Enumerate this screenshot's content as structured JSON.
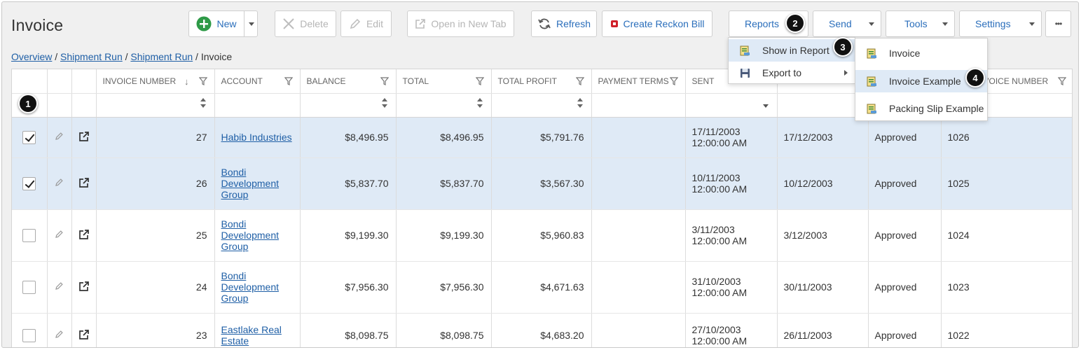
{
  "page": {
    "title": "Invoice"
  },
  "toolbar": {
    "new": "New",
    "delete": "Delete",
    "edit": "Edit",
    "open_new_tab": "Open in New Tab",
    "refresh": "Refresh",
    "create_reckon_bill": "Create Reckon Bill",
    "reports": "Reports",
    "send": "Send",
    "tools": "Tools",
    "settings": "Settings",
    "more": "•••"
  },
  "breadcrumb": {
    "overview": "Overview",
    "shipment_run_1": "Shipment Run",
    "shipment_run_2": "Shipment Run",
    "sep": " / ",
    "current": "Invoice"
  },
  "columns": {
    "invoice_number": "Invoice Number",
    "account": "Account",
    "balance": "Balance",
    "total": "Total",
    "total_profit": "Total Profit",
    "payment_terms": "Payment Terms",
    "sent": "Sent",
    "voice_number": "voice Number"
  },
  "rows": [
    {
      "selected": true,
      "number": "27",
      "account": [
        "Habib Industries"
      ],
      "balance": "$8,496.95",
      "total": "$8,496.95",
      "profit": "$5,791.76",
      "sent_date": "17/11/2003",
      "sent_time": "12:00:00 AM",
      "due": "17/12/2003",
      "status": "Approved",
      "ref": "1026"
    },
    {
      "selected": true,
      "number": "26",
      "account": [
        "Bondi",
        "Development",
        "Group"
      ],
      "balance": "$5,837.70",
      "total": "$5,837.70",
      "profit": "$3,567.30",
      "sent_date": "10/11/2003",
      "sent_time": "12:00:00 AM",
      "due": "10/12/2003",
      "status": "Approved",
      "ref": "1025"
    },
    {
      "selected": false,
      "number": "25",
      "account": [
        "Bondi",
        "Development",
        "Group"
      ],
      "balance": "$9,199.30",
      "total": "$9,199.30",
      "profit": "$5,960.83",
      "sent_date": "3/11/2003",
      "sent_time": "12:00:00 AM",
      "due": "3/12/2003",
      "status": "Approved",
      "ref": "1024"
    },
    {
      "selected": false,
      "number": "24",
      "account": [
        "Bondi",
        "Development",
        "Group"
      ],
      "balance": "$7,956.30",
      "total": "$7,956.30",
      "profit": "$4,671.63",
      "sent_date": "31/10/2003",
      "sent_time": "12:00:00 AM",
      "due": "30/11/2003",
      "status": "Approved",
      "ref": "1023"
    },
    {
      "selected": false,
      "number": "23",
      "account": [
        "Eastlake Real",
        "Estate"
      ],
      "balance": "$8,098.75",
      "total": "$8,098.75",
      "profit": "$4,683.20",
      "sent_date": "27/10/2003",
      "sent_time": "12:00:00 AM",
      "due": "26/11/2003",
      "status": "Approved",
      "ref": "1022"
    }
  ],
  "reports_menu": {
    "show_in_report": "Show in Report",
    "export_to": "Export to"
  },
  "report_submenu": {
    "invoice": "Invoice",
    "invoice_example": "Invoice Example",
    "packing_slip_example": "Packing Slip Example"
  },
  "step_badges": {
    "b1": "1",
    "b2": "2",
    "b3": "3",
    "b4": "4"
  },
  "colors": {
    "accent": "#2a6ebb",
    "new_icon": "#2e9a47",
    "selected_row": "#dfeaf6",
    "reckon_icon": "#d0202a"
  }
}
